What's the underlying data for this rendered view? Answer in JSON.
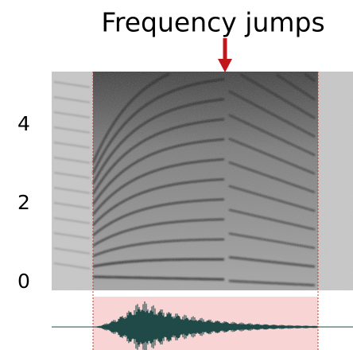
{
  "chart_data": {
    "type": "spectrogram",
    "annotation": "Frequency jumps",
    "ylim": [
      -0.2,
      5.35
    ],
    "yticks": [
      0,
      2,
      4
    ]
  }
}
